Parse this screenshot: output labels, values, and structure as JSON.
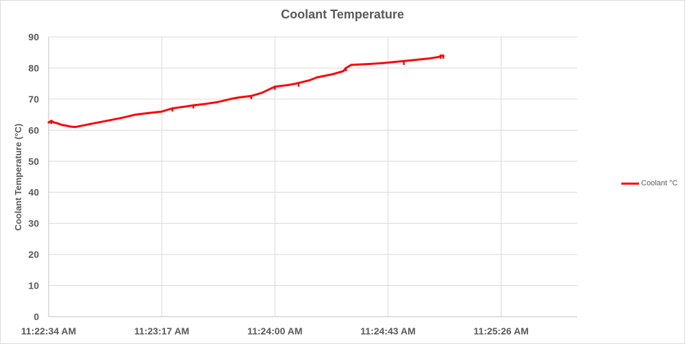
{
  "chart_data": {
    "type": "line",
    "title": "Coolant Temperature",
    "ylabel": "Coolant Temperature (°C)",
    "xlabel": "",
    "ylim": [
      0,
      90
    ],
    "y_ticks": [
      0,
      10,
      20,
      30,
      40,
      50,
      60,
      70,
      80,
      90
    ],
    "xlim": [
      "11:22:34 AM",
      "11:25:55 AM"
    ],
    "x_ticks": [
      "11:22:34 AM",
      "11:23:17 AM",
      "11:24:00 AM",
      "11:24:43 AM",
      "11:25:26 AM"
    ],
    "grid": true,
    "legend_position": "right",
    "series": [
      {
        "name": "Coolant °C",
        "color": "#ff0000",
        "x": [
          "11:22:34 AM",
          "11:22:35 AM",
          "11:22:35 AM",
          "11:22:35 AM",
          "11:22:36 AM",
          "11:22:37 AM",
          "11:22:38 AM",
          "11:22:39 AM",
          "11:22:41 AM",
          "11:22:42 AM",
          "11:22:44 AM",
          "11:22:50 AM",
          "11:22:56 AM",
          "11:23:02 AM",
          "11:23:07 AM",
          "11:23:12 AM",
          "11:23:17 AM",
          "11:23:21 AM",
          "11:23:25 AM",
          "11:23:29 AM",
          "11:23:34 AM",
          "11:23:38 AM",
          "11:23:43 AM",
          "11:23:46 AM",
          "11:23:51 AM",
          "11:23:55 AM",
          "11:24:00 AM",
          "11:24:05 AM",
          "11:24:08 AM",
          "11:24:13 AM",
          "11:24:16 AM",
          "11:24:22 AM",
          "11:24:26 AM",
          "11:24:27 AM",
          "11:24:29 AM",
          "11:24:36 AM",
          "11:24:41 AM",
          "11:24:46 AM",
          "11:24:52 AM",
          "11:24:58 AM",
          "11:25:02 AM",
          "11:25:03 AM",
          "11:25:03 AM",
          "11:25:04 AM",
          "11:25:04 AM"
        ],
        "values": [
          62.5,
          63,
          62.5,
          63,
          62.5,
          62.3,
          62,
          61.7,
          61.4,
          61.2,
          61,
          62,
          63,
          64,
          65,
          65.5,
          66,
          67,
          67.5,
          68,
          68.5,
          69,
          70,
          70.5,
          71,
          72,
          74,
          74.5,
          75,
          76,
          77,
          78,
          79,
          80,
          81,
          81.3,
          81.6,
          82,
          82.5,
          83,
          83.5,
          83.8,
          84,
          84,
          83.8
        ],
        "dips": [
          {
            "x": "11:22:35 AM",
            "value": 62
          },
          {
            "x": "11:23:21 AM",
            "value": 66
          },
          {
            "x": "11:23:29 AM",
            "value": 67
          },
          {
            "x": "11:23:51 AM",
            "value": 70
          },
          {
            "x": "11:24:00 AM",
            "value": 73
          },
          {
            "x": "11:24:09 AM",
            "value": 74
          },
          {
            "x": "11:24:27 AM",
            "value": 79
          },
          {
            "x": "11:24:49 AM",
            "value": 81
          },
          {
            "x": "11:25:03 AM",
            "value": 83
          },
          {
            "x": "11:25:04 AM",
            "value": 83
          }
        ]
      }
    ]
  }
}
